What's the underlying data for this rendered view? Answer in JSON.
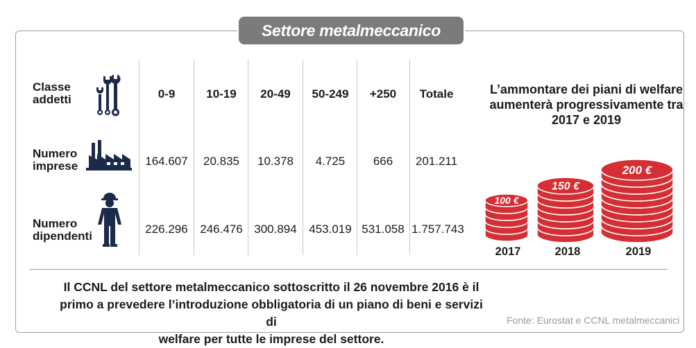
{
  "title": "Settore metalmeccanico",
  "table": {
    "row_labels": {
      "classe": [
        "Classe",
        "addetti"
      ],
      "imprese": [
        "Numero",
        "imprese"
      ],
      "dipendenti": [
        "Numero",
        "dipendenti"
      ]
    },
    "headers": [
      "0-9",
      "10-19",
      "20-49",
      "50-249",
      "+250",
      "Totale"
    ],
    "imprese": [
      "164.607",
      "20.835",
      "10.378",
      "4.725",
      "666",
      "201.211"
    ],
    "dipendenti": [
      "226.296",
      "246.476",
      "300.894",
      "453.019",
      "531.058",
      "1.757.743"
    ]
  },
  "icons": {
    "classe": "wrench-icon",
    "imprese": "factory-icon",
    "dipendenti": "worker-icon"
  },
  "welfare": {
    "title_lines": [
      "L’ammontare dei piani di welfare",
      "aumenterà progressivamente tra",
      "2017 e 2019"
    ],
    "coins": [
      {
        "year": "2017",
        "amount": "100 €"
      },
      {
        "year": "2018",
        "amount": "150 €"
      },
      {
        "year": "2019",
        "amount": "200 €"
      }
    ],
    "coin_color": "#d32f34"
  },
  "note_lines": [
    "Il CCNL del settore metalmeccanico sottoscritto il 26 novembre 2016 è il",
    "primo a prevedere l’introduzione obbligatoria di un piano di beni e servizi di",
    "welfare per tutte le imprese del settore."
  ],
  "source": "Fonte: Eurostat e CCNL metalmeccanici",
  "colors": {
    "icon": "#1b2a4a",
    "accent": "#d32f34",
    "pill": "#7b7b7b"
  }
}
